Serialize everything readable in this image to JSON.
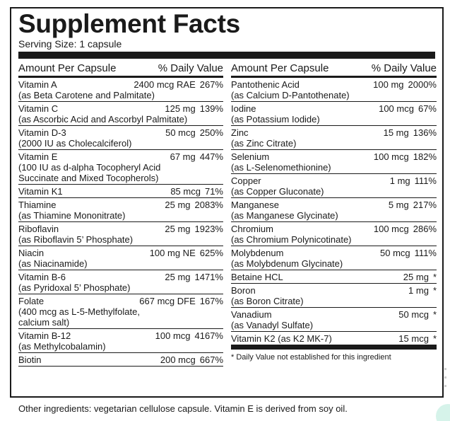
{
  "title": "Supplement Facts",
  "serving_size": "Serving Size: 1 capsule",
  "column_headers": {
    "amount": "Amount Per Capsule",
    "dv": "% Daily Value"
  },
  "left_rows": [
    {
      "name": "Vitamin A",
      "amount": "2400 mcg RAE",
      "dv": "267%",
      "sub": [
        "(as Beta Carotene and Palmitate)"
      ]
    },
    {
      "name": "Vitamin C",
      "amount": "125 mg",
      "dv": "139%",
      "sub": [
        "(as Ascorbic Acid and Ascorbyl Palmitate)"
      ]
    },
    {
      "name": "Vitamin D-3",
      "amount": "50 mcg",
      "dv": "250%",
      "sub": [
        "(2000 IU as Cholecalciferol)"
      ]
    },
    {
      "name": "Vitamin E",
      "amount": "67 mg",
      "dv": "447%",
      "sub": [
        "(100 IU as d-alpha Tocopheryl Acid",
        "Succinate and Mixed Tocopherols)"
      ]
    },
    {
      "name": "Vitamin K1",
      "amount": "85 mcg",
      "dv": "71%",
      "sub": []
    },
    {
      "name": "Thiamine",
      "amount": "25 mg",
      "dv": "2083%",
      "sub": [
        "(as Thiamine Mononitrate)"
      ]
    },
    {
      "name": "Riboflavin",
      "amount": "25 mg",
      "dv": "1923%",
      "sub": [
        "(as Riboflavin 5’ Phosphate)"
      ]
    },
    {
      "name": "Niacin",
      "amount": "100 mg NE",
      "dv": "625%",
      "sub": [
        "(as Niacinamide)"
      ]
    },
    {
      "name": "Vitamin B-6",
      "amount": "25 mg",
      "dv": "1471%",
      "sub": [
        "(as Pyridoxal 5’ Phosphate)"
      ]
    },
    {
      "name": "Folate",
      "amount": "667 mcg DFE",
      "dv": "167%",
      "sub": [
        "(400 mcg as L-5-Methylfolate,",
        "calcium salt)"
      ]
    },
    {
      "name": "Vitamin B-12",
      "amount": "100 mcg",
      "dv": "4167%",
      "sub": [
        "(as Methylcobalamin)"
      ]
    },
    {
      "name": "Biotin",
      "amount": "200 mcg",
      "dv": "667%",
      "sub": []
    }
  ],
  "right_rows": [
    {
      "name": "Pantothenic Acid",
      "amount": "100 mg",
      "dv": "2000%",
      "sub": [
        "(as Calcium D-Pantothenate)"
      ]
    },
    {
      "name": "Iodine",
      "amount": "100 mcg",
      "dv": "67%",
      "sub": [
        "(as Potassium Iodide)"
      ]
    },
    {
      "name": "Zinc",
      "amount": "15 mg",
      "dv": "136%",
      "sub": [
        "(as Zinc Citrate)"
      ]
    },
    {
      "name": "Selenium",
      "amount": "100 mcg",
      "dv": "182%",
      "sub": [
        "(as L-Selenomethionine)"
      ]
    },
    {
      "name": "Copper",
      "amount": "1 mg",
      "dv": "111%",
      "sub": [
        "(as Copper Gluconate)"
      ]
    },
    {
      "name": "Manganese",
      "amount": "5 mg",
      "dv": "217%",
      "sub": [
        "(as Manganese Glycinate)"
      ]
    },
    {
      "name": "Chromium",
      "amount": "100 mcg",
      "dv": "286%",
      "sub": [
        "(as Chromium Polynicotinate)"
      ]
    },
    {
      "name": "Molybdenum",
      "amount": "50 mcg",
      "dv": "111%",
      "sub": [
        "(as Molybdenum Glycinate)"
      ]
    },
    {
      "name": "Betaine HCL",
      "amount": "25 mg",
      "dv": "*",
      "sub": []
    },
    {
      "name": "Boron",
      "amount": "1 mg",
      "dv": "*",
      "sub": [
        "(as Boron Citrate)"
      ]
    },
    {
      "name": "Vanadium",
      "amount": "50 mcg",
      "dv": "*",
      "sub": [
        "(as Vanadyl Sulfate)"
      ]
    },
    {
      "name": "Vitamin K2 (as K2 MK-7)",
      "amount": "15 mcg",
      "dv": "*",
      "sub": []
    }
  ],
  "footnote": "* Daily Value not established for this ingredient",
  "other_ingredients": "Other ingredients: vegetarian cellulose capsule. Vitamin E is derived from soy oil."
}
